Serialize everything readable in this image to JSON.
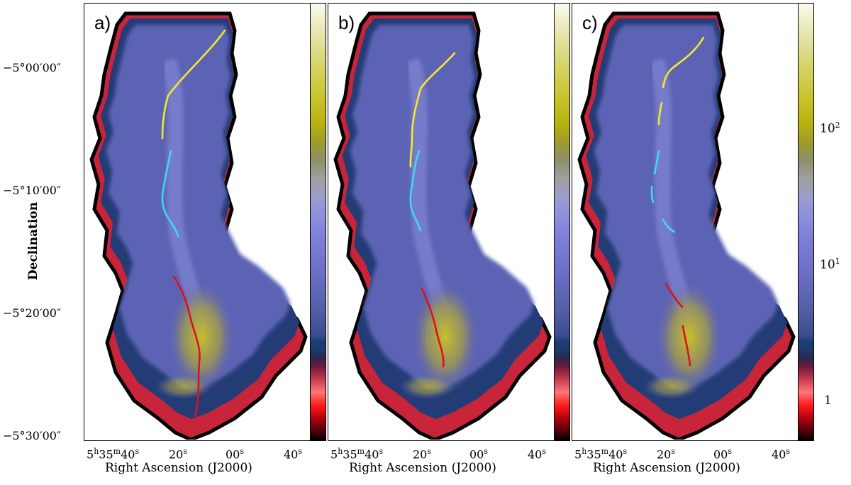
{
  "figure": {
    "y_axis_label": "Declination",
    "x_axis_label": "Right Ascension (J2000)",
    "y_ticks": [
      "−5°00′00″",
      "−5°10′00″",
      "−5°20′00″",
      "−5°30′00″"
    ],
    "x_ticks": {
      "first_base": "5",
      "first_h": "h",
      "first_mid": "35",
      "first_m": "m",
      "first_end": "40",
      "first_s": "s",
      "second": "20",
      "third": "00",
      "fourth": "40",
      "sec_unit": "s"
    },
    "colorbar_ticks": {
      "t100_base": "10",
      "t100_exp": "2",
      "t10_base": "10",
      "t10_exp": "1",
      "t1": "1"
    },
    "panels": [
      {
        "letter": "a)"
      },
      {
        "letter": "b)"
      },
      {
        "letter": "c)"
      }
    ],
    "colors": {
      "filament_north": "#f2ea2a",
      "filament_middle": "#3fd9f0",
      "filament_south": "#e0101a",
      "map_base": "#5b63b4",
      "map_edge": "#c8243a",
      "bright_core": "#c8bf2a"
    }
  }
}
